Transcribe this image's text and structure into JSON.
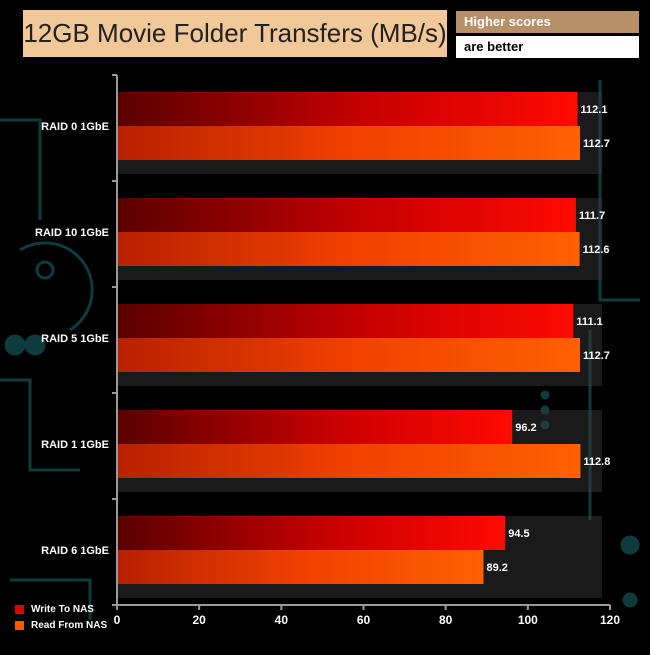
{
  "title": "12GB Movie Folder Transfers (MB/s)",
  "note": [
    "Higher scores",
    "are better"
  ],
  "colors": {
    "write": "#e00000",
    "read": "#ff5a00",
    "note_top_bg": "#b89068",
    "title_bg": "#f2c898"
  },
  "chart_data": {
    "type": "bar",
    "orientation": "horizontal",
    "title": "12GB Movie Folder Transfers (MB/s)",
    "categories": [
      "RAID 0 1GbE",
      "RAID 10 1GbE",
      "RAID 5 1GbE",
      "RAID 1 1GbE",
      "RAID 6 1GbE"
    ],
    "series": [
      {
        "name": "Write To NAS",
        "values": [
          112.1,
          111.7,
          111.1,
          96.2,
          94.5
        ]
      },
      {
        "name": "Read From NAS",
        "values": [
          112.7,
          112.6,
          112.7,
          112.8,
          89.2
        ]
      }
    ],
    "xlim": [
      0,
      120
    ],
    "xticks": [
      0,
      20,
      40,
      60,
      80,
      100,
      120
    ],
    "legend": "bottom-left",
    "grid": false
  }
}
